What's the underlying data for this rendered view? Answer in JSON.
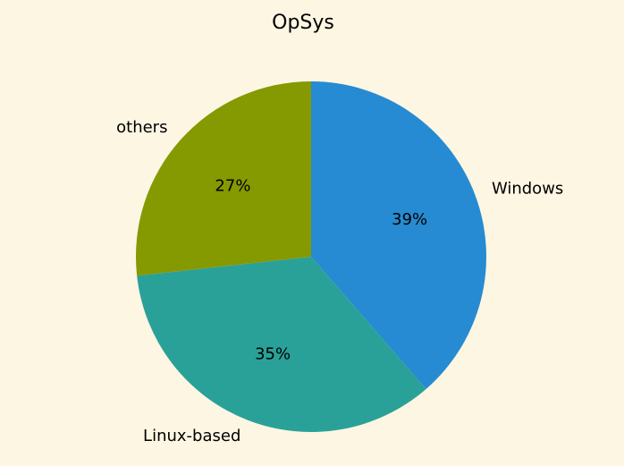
{
  "chart_data": {
    "type": "pie",
    "title": "OpSys",
    "labels": [
      "Windows",
      "Linux-based",
      "others"
    ],
    "values": [
      39,
      35,
      27
    ],
    "percent_labels": [
      "39%",
      "35%",
      "27%"
    ],
    "colors": [
      "#268bd2",
      "#2aa198",
      "#859900"
    ],
    "start_angle_deg": 90,
    "direction": "clockwise",
    "background": "#fdf6e3"
  }
}
